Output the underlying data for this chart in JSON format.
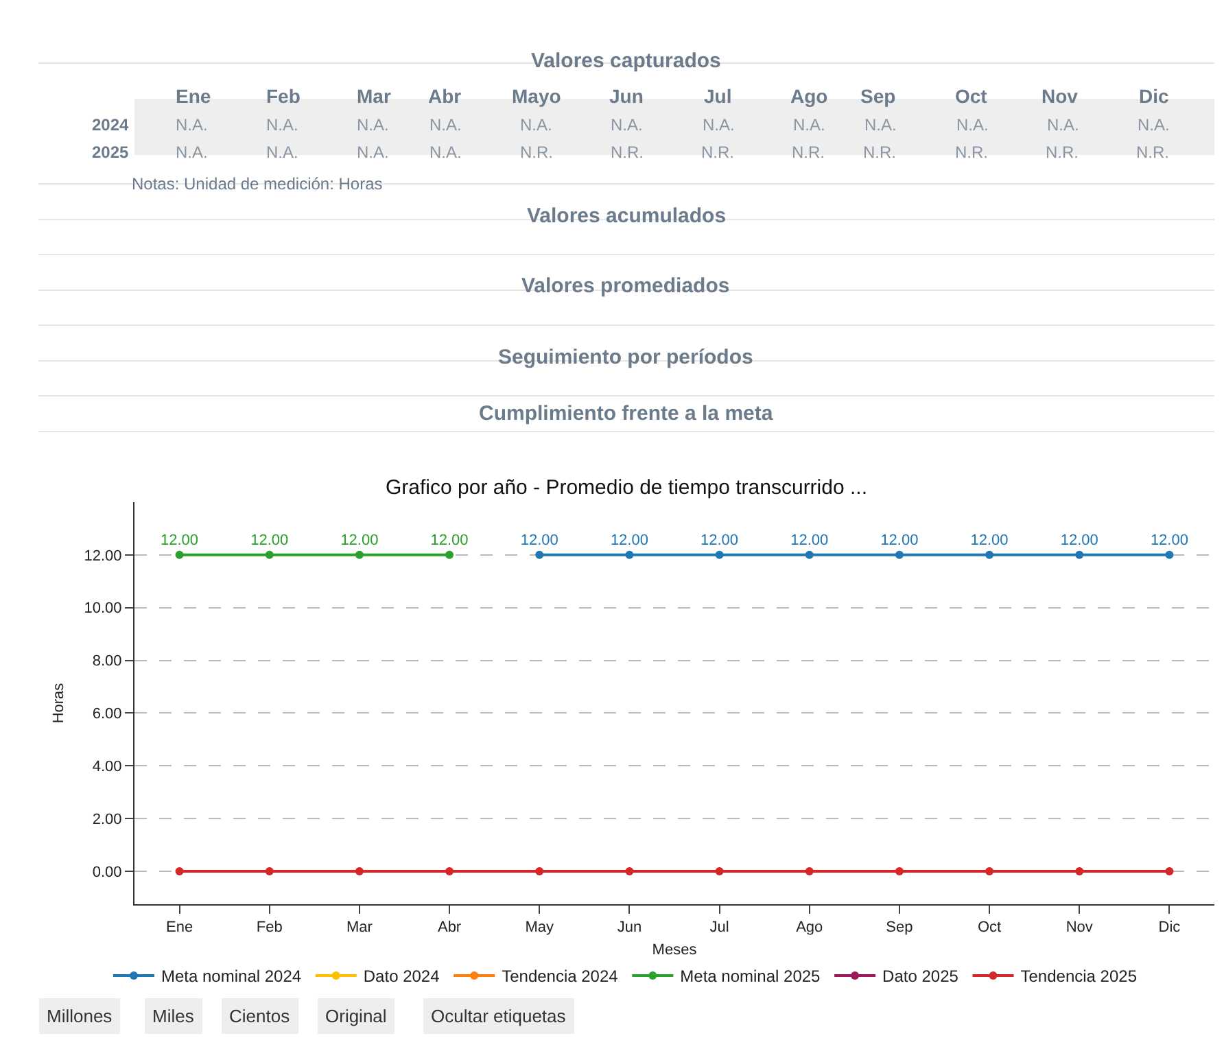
{
  "chart_data": [
    {
      "type": "other",
      "title": "Valores capturados",
      "categories": [
        "Ene",
        "Feb",
        "Mar",
        "Abr",
        "Mayo",
        "Jun",
        "Jul",
        "Ago",
        "Sep",
        "Oct",
        "Nov",
        "Dic"
      ],
      "y_categories": [
        "2024",
        "2025"
      ],
      "cell_labels": [
        [
          "N.A.",
          "N.A.",
          "N.A.",
          "N.A.",
          "N.A.",
          "N.A.",
          "N.A.",
          "N.A.",
          "N.A.",
          "N.A.",
          "N.A.",
          "N.A."
        ],
        [
          "N.A.",
          "N.A.",
          "N.A.",
          "N.A.",
          "N.R.",
          "N.R.",
          "N.R.",
          "N.R.",
          "N.R.",
          "N.R.",
          "N.R.",
          "N.R."
        ]
      ],
      "annotations": [
        "Notas: Unidad de medición: Horas",
        "Valores acumulados",
        "Valores promediados",
        "Seguimiento por períodos",
        "Cumplimiento frente a la meta"
      ]
    },
    {
      "type": "line",
      "title": "Grafico por año - Promedio de tiempo transcurrido ...",
      "xlabel": "Meses",
      "ylabel": "Horas",
      "categories": [
        "Ene",
        "Feb",
        "Mar",
        "Abr",
        "May",
        "Jun",
        "Jul",
        "Ago",
        "Sep",
        "Oct",
        "Nov",
        "Dic"
      ],
      "ylim": [
        -1.25,
        14
      ],
      "yticks": [
        {
          "value": 0,
          "label": "0.00"
        },
        {
          "value": 2,
          "label": "2.00"
        },
        {
          "value": 4,
          "label": "4.00"
        },
        {
          "value": 6,
          "label": "6.00"
        },
        {
          "value": 8,
          "label": "8.00"
        },
        {
          "value": 10,
          "label": "10.00"
        },
        {
          "value": 12,
          "label": "12.00"
        }
      ],
      "grid": "y",
      "legend": "bottom",
      "marker": "circle",
      "line_style": "solid",
      "series": [
        {
          "name": "Meta nominal 2024",
          "color": "#1f77b4",
          "values": [
            null,
            null,
            null,
            null,
            12,
            12,
            12,
            12,
            12,
            12,
            12,
            12
          ],
          "value_labels": [
            null,
            null,
            null,
            null,
            "12.00",
            "12.00",
            "12.00",
            "12.00",
            "12.00",
            "12.00",
            "12.00",
            "12.00"
          ]
        },
        {
          "name": "Dato 2024",
          "color": "#ffc000",
          "values": [
            null,
            null,
            null,
            null,
            null,
            null,
            null,
            null,
            null,
            null,
            null,
            null
          ]
        },
        {
          "name": "Tendencia 2024",
          "color": "#ff7f0e",
          "values": [
            null,
            null,
            null,
            null,
            null,
            null,
            null,
            null,
            null,
            null,
            null,
            null
          ]
        },
        {
          "name": "Meta nominal 2025",
          "color": "#2ca02c",
          "values": [
            12,
            12,
            12,
            12,
            null,
            null,
            null,
            null,
            null,
            null,
            null,
            null
          ],
          "value_labels": [
            "12.00",
            "12.00",
            "12.00",
            "12.00",
            null,
            null,
            null,
            null,
            null,
            null,
            null,
            null
          ]
        },
        {
          "name": "Dato 2025",
          "color": "#a0185a",
          "values": [
            null,
            null,
            null,
            null,
            null,
            null,
            null,
            null,
            null,
            null,
            null,
            null
          ]
        },
        {
          "name": "Tendencia 2025",
          "color": "#d62728",
          "values": [
            0,
            0,
            0,
            0,
            0,
            0,
            0,
            0,
            0,
            0,
            0,
            0
          ]
        }
      ],
      "annotations": [
        "Millones",
        "Miles",
        "Cientos",
        "Original",
        "Ocultar etiquetas"
      ]
    }
  ]
}
